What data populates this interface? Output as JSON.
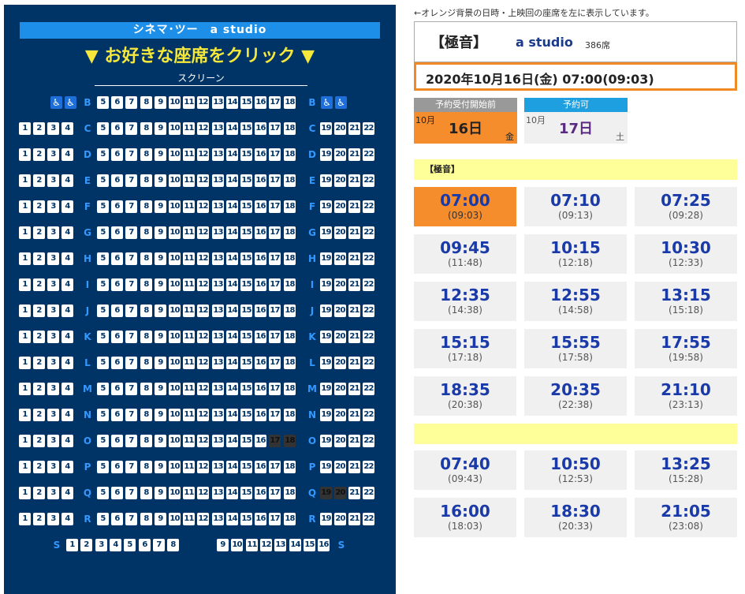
{
  "left_panel": {
    "title": "シネマ･ツー　a studio",
    "prompt": "▼ お好きな座席をクリック ▼",
    "screen": "スクリーン",
    "wheelchair_icon": "wheelchair-icon",
    "rows": [
      "C",
      "D",
      "E",
      "F",
      "G",
      "H",
      "I",
      "J",
      "K",
      "L",
      "M",
      "N",
      "O",
      "P",
      "Q",
      "R"
    ],
    "row_b": "B",
    "row_s": "S",
    "dark_seats": {
      "O": [
        17,
        18
      ],
      "Q": [
        19,
        20
      ]
    },
    "row_s_left_seats": [
      1,
      2,
      3,
      4,
      5,
      6,
      7,
      8
    ],
    "row_s_right_seats": [
      9,
      10,
      11,
      12,
      13,
      14,
      15,
      16
    ]
  },
  "right_panel": {
    "note": "←オレンジ背景の日時・上映回の座席を左に表示しています。",
    "sound": "【極音】",
    "studio": "a studio",
    "seats": "386席",
    "selected_datetime": "2020年10月16日(金) 07:00(09:03)",
    "days": [
      {
        "status": "予約受付開始前",
        "month": "10月",
        "day": "16日",
        "weekday": "金",
        "selected": true
      },
      {
        "status": "予約可",
        "month": "10月",
        "day": "17日",
        "weekday": "土",
        "selected": false
      }
    ],
    "section1_title": "【極音】",
    "section2_title": "",
    "colors": {
      "orange": "#f58d2d",
      "navy": "#003366",
      "blue": "#1e8fe8",
      "yellow": "#ffff99"
    }
  },
  "showtimes_1": [
    {
      "start": "07:00",
      "end": "(09:03)",
      "active": true
    },
    {
      "start": "07:10",
      "end": "(09:13)"
    },
    {
      "start": "07:25",
      "end": "(09:28)"
    },
    {
      "start": "09:45",
      "end": "(11:48)"
    },
    {
      "start": "10:15",
      "end": "(12:18)"
    },
    {
      "start": "10:30",
      "end": "(12:33)"
    },
    {
      "start": "12:35",
      "end": "(14:38)"
    },
    {
      "start": "12:55",
      "end": "(14:58)"
    },
    {
      "start": "13:15",
      "end": "(15:18)"
    },
    {
      "start": "15:15",
      "end": "(17:18)"
    },
    {
      "start": "15:55",
      "end": "(17:58)"
    },
    {
      "start": "17:55",
      "end": "(19:58)"
    },
    {
      "start": "18:35",
      "end": "(20:38)"
    },
    {
      "start": "20:35",
      "end": "(22:38)"
    },
    {
      "start": "21:10",
      "end": "(23:13)"
    }
  ],
  "showtimes_2": [
    {
      "start": "07:40",
      "end": "(09:43)"
    },
    {
      "start": "10:50",
      "end": "(12:53)"
    },
    {
      "start": "13:25",
      "end": "(15:28)"
    },
    {
      "start": "16:00",
      "end": "(18:03)"
    },
    {
      "start": "18:30",
      "end": "(20:33)"
    },
    {
      "start": "21:05",
      "end": "(23:08)"
    }
  ]
}
